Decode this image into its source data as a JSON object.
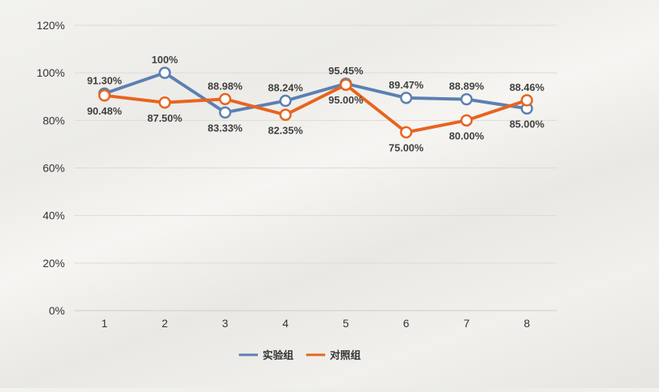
{
  "chart_data": {
    "type": "line",
    "title": "",
    "xlabel": "",
    "ylabel": "",
    "categories": [
      "1",
      "2",
      "3",
      "4",
      "5",
      "6",
      "7",
      "8"
    ],
    "y_ticks": [
      "0%",
      "20%",
      "40%",
      "60%",
      "80%",
      "100%",
      "120%"
    ],
    "ylim": [
      0,
      1.2
    ],
    "grid": true,
    "legend_position": "bottom",
    "series": [
      {
        "name": "实验组",
        "color": "#5b80b2",
        "values": [
          0.913,
          1.0,
          0.8333,
          0.8824,
          0.9545,
          0.8947,
          0.8889,
          0.85
        ],
        "labels": [
          "91.30%",
          "100%",
          "83.33%",
          "88.24%",
          "95.45%",
          "89.47%",
          "88.89%",
          "85.00%"
        ]
      },
      {
        "name": "对照组",
        "color": "#e8641e",
        "values": [
          0.9048,
          0.875,
          0.8898,
          0.8235,
          0.95,
          0.75,
          0.8,
          0.8846
        ],
        "labels": [
          "90.48%",
          "87.50%",
          "88.98%",
          "82.35%",
          "95.00%",
          "75.00%",
          "80.00%",
          "88.46%"
        ]
      }
    ]
  }
}
